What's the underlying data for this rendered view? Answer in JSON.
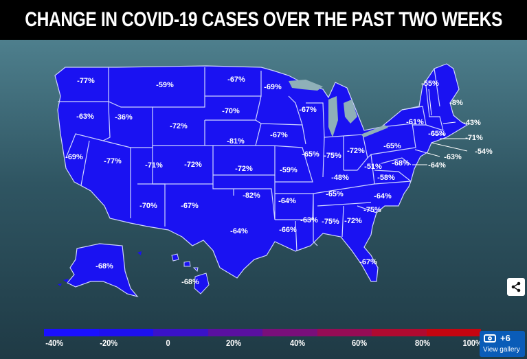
{
  "title": "CHANGE IN COVID-19 CASES OVER THE PAST TWO WEEKS",
  "colors": {
    "state_fill": "#1a12f2",
    "state_border": "#cfd6ff",
    "great_lakes": "#8fb0b8"
  },
  "legend": {
    "ticks": [
      "-40%",
      "-20%",
      "0",
      "20%",
      "40%",
      "60%",
      "80%",
      "100%"
    ],
    "gradient_colors": [
      "#1a10ff",
      "#1d10f0",
      "#3a12c8",
      "#5a10a0",
      "#7a0f7a",
      "#960c55",
      "#b00a30",
      "#c50510"
    ]
  },
  "states": [
    {
      "label": "-77%"
    },
    {
      "label": "-59%"
    },
    {
      "label": "-67%"
    },
    {
      "label": "-69%"
    },
    {
      "label": "-55%"
    },
    {
      "label": "-8%"
    },
    {
      "label": "-63%"
    },
    {
      "label": "-36%"
    },
    {
      "label": "-70%"
    },
    {
      "label": "-67%"
    },
    {
      "label": "-72%"
    },
    {
      "label": "-61%"
    },
    {
      "label": "-43%"
    },
    {
      "label": "-65%"
    },
    {
      "label": "-71%"
    },
    {
      "label": "-54%"
    },
    {
      "label": "-81%"
    },
    {
      "label": "-67%"
    },
    {
      "label": "-69%"
    },
    {
      "label": "-77%"
    },
    {
      "label": "-71%"
    },
    {
      "label": "-72%"
    },
    {
      "label": "-72%"
    },
    {
      "label": "-65%"
    },
    {
      "label": "-75%"
    },
    {
      "label": "-72%"
    },
    {
      "label": "-65%"
    },
    {
      "label": "-63%"
    },
    {
      "label": "-68%"
    },
    {
      "label": "-64%"
    },
    {
      "label": "-51%"
    },
    {
      "label": "-59%"
    },
    {
      "label": "-48%"
    },
    {
      "label": "-58%"
    },
    {
      "label": "-82%"
    },
    {
      "label": "-64%"
    },
    {
      "label": "-65%"
    },
    {
      "label": "-64%"
    },
    {
      "label": "-70%"
    },
    {
      "label": "-67%"
    },
    {
      "label": "-75%"
    },
    {
      "label": "-66%"
    },
    {
      "label": "-63%"
    },
    {
      "label": "-75%"
    },
    {
      "label": "-72%"
    },
    {
      "label": "-64%"
    },
    {
      "label": "-67%"
    },
    {
      "label": "-68%"
    },
    {
      "label": "-68%"
    }
  ],
  "gallery": {
    "count": "+6",
    "label": "View gallery"
  }
}
